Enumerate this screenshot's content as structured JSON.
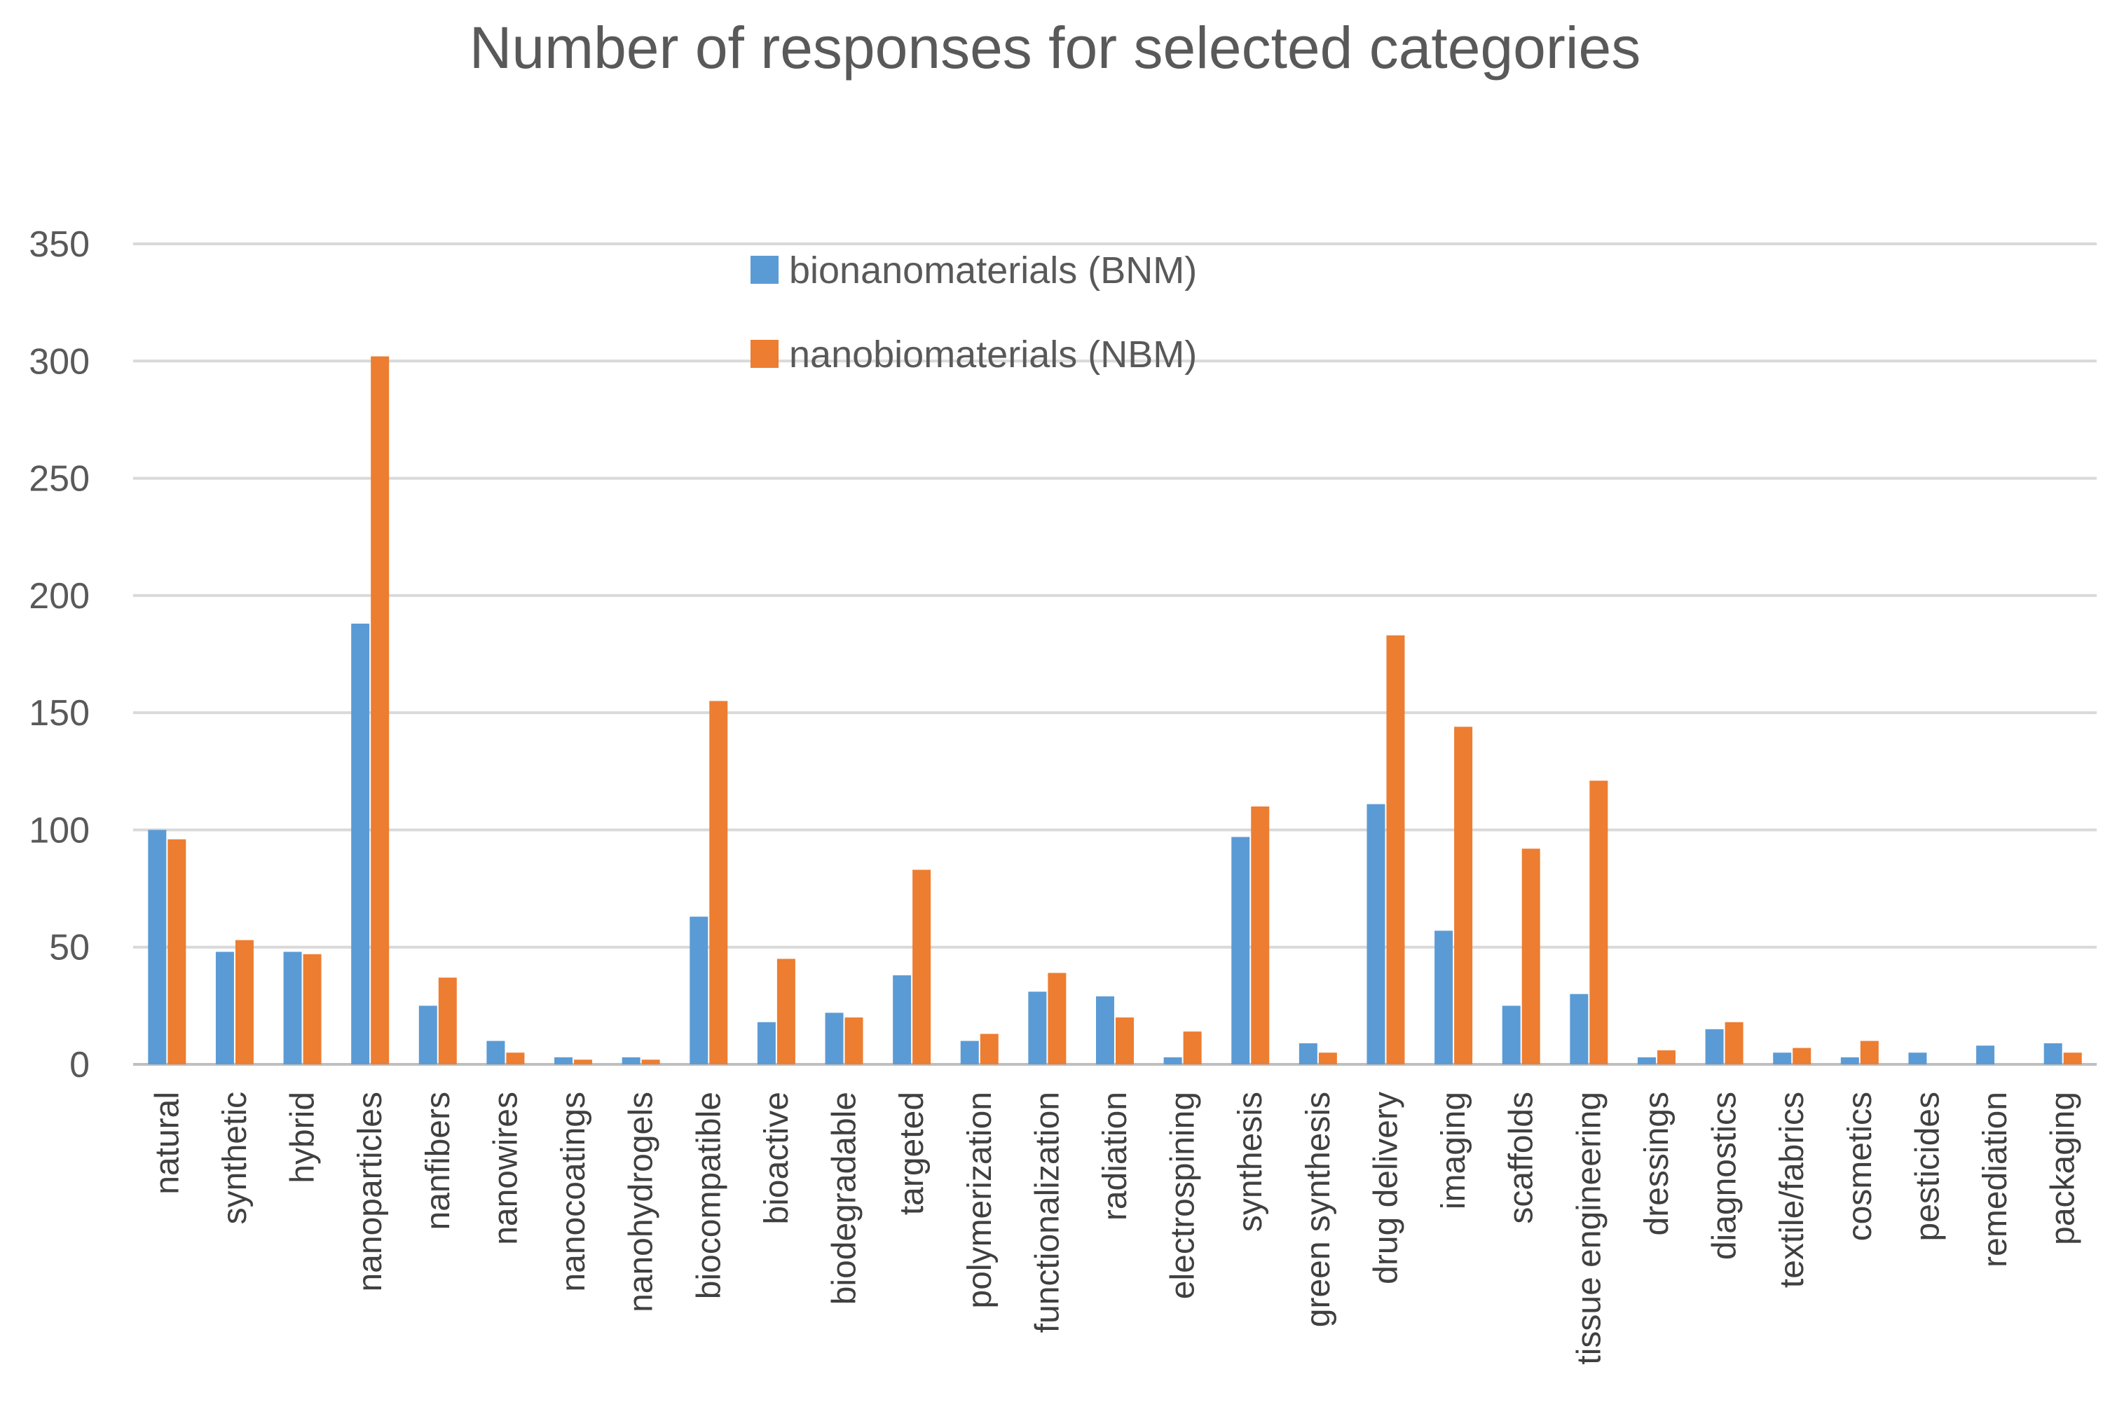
{
  "chart_data": {
    "type": "bar",
    "title": "Number of responses for selected categories",
    "xlabel": "",
    "ylabel": "",
    "ylim": [
      0,
      350
    ],
    "yticks": [
      0,
      50,
      100,
      150,
      200,
      250,
      300,
      350
    ],
    "grid": true,
    "legend_position": "top-center",
    "categories": [
      "natural",
      "synthetic",
      "hybrid",
      "nanoparticles",
      "nanfibers",
      "nanowires",
      "nanocoatings",
      "nanohydrogels",
      "biocompatible",
      "bioactive",
      "biodegradable",
      "targeted",
      "polymerization",
      "functionalization",
      "radiation",
      "electrospining",
      "synthesis",
      "green synthesis",
      "drug delivery",
      "imaging",
      "scaffolds",
      "tissue engineering",
      "dressings",
      "diagnostics",
      "textile/fabrics",
      "cosmetics",
      "pesticides",
      "remediation",
      "packaging"
    ],
    "series": [
      {
        "name": "bionanomaterials (BNM)",
        "color": "#5B9BD5",
        "values": [
          100,
          48,
          48,
          188,
          25,
          10,
          3,
          3,
          63,
          18,
          22,
          38,
          10,
          31,
          29,
          3,
          97,
          9,
          111,
          57,
          25,
          30,
          3,
          15,
          5,
          3,
          5,
          8,
          9
        ]
      },
      {
        "name": "nanobiomaterials (NBM)",
        "color": "#ED7D31",
        "values": [
          96,
          53,
          47,
          302,
          37,
          5,
          2,
          2,
          155,
          45,
          20,
          83,
          13,
          39,
          20,
          14,
          110,
          5,
          183,
          144,
          92,
          121,
          6,
          18,
          7,
          10,
          0,
          0,
          5
        ]
      }
    ]
  }
}
